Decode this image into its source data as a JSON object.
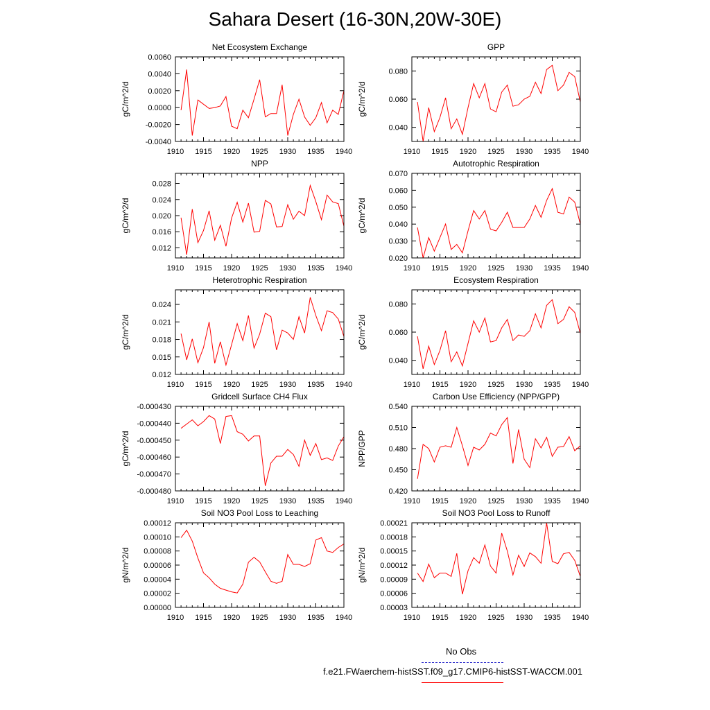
{
  "title": "Sahara Desert (16-30N,20W-30E)",
  "legend": {
    "items": [
      {
        "label": "No Obs",
        "color": "#3a3acf",
        "style": "dashed"
      },
      {
        "label": "f.e21.FWaerchem-histSST.f09_g17.CMIP6-histSST-WACCM.001",
        "color": "#ff0000",
        "style": "solid"
      }
    ]
  },
  "colors": {
    "series": "#ff0000",
    "axis": "#000000"
  },
  "chart_data": [
    {
      "type": "line",
      "title": "Net Ecosystem Exchange",
      "ylabel": "gC/m^2/d",
      "xlim": [
        1910,
        1940
      ],
      "ylim": [
        -0.004,
        0.006
      ],
      "xticks": [
        "1910",
        "1915",
        "1920",
        "1925",
        "1930",
        "1935",
        "1940"
      ],
      "yticks": [
        "-0.0040",
        "-0.0020",
        "0.0000",
        "0.0020",
        "0.0040",
        "0.0060"
      ],
      "ytick_values": [
        -0.004,
        -0.002,
        0,
        0.002,
        0.004,
        0.006
      ],
      "series": [
        {
          "x": [
            1911,
            1912,
            1913,
            1914,
            1915,
            1916,
            1917,
            1918,
            1919,
            1920,
            1921,
            1922,
            1923,
            1924,
            1925,
            1926,
            1927,
            1928,
            1929,
            1930,
            1931,
            1932,
            1933,
            1934,
            1935,
            1936,
            1937,
            1938,
            1939,
            1940
          ],
          "values": [
            -0.0003,
            0.0045,
            -0.0033,
            0.0009,
            0.0004,
            -0.0001,
            0.0,
            0.0002,
            0.0013,
            -0.0022,
            -0.0025,
            -0.0003,
            -0.0012,
            0.001,
            0.0033,
            -0.0011,
            -0.0007,
            -0.0007,
            0.0027,
            -0.0033,
            -0.0008,
            0.001,
            -0.0011,
            -0.0021,
            -0.0012,
            0.0006,
            -0.0018,
            -0.0003,
            -0.0008,
            0.002
          ]
        }
      ]
    },
    {
      "type": "line",
      "title": "GPP",
      "ylabel": "gC/m^2/d",
      "xlim": [
        1910,
        1940
      ],
      "ylim": [
        0.03,
        0.09
      ],
      "xticks": [
        "1910",
        "1915",
        "1920",
        "1925",
        "1930",
        "1935",
        "1940"
      ],
      "yticks": [
        "0.040",
        "0.060",
        "0.080"
      ],
      "ytick_values": [
        0.04,
        0.06,
        0.08
      ],
      "series": [
        {
          "x": [
            1911,
            1912,
            1913,
            1914,
            1915,
            1916,
            1917,
            1918,
            1919,
            1920,
            1921,
            1922,
            1923,
            1924,
            1925,
            1926,
            1927,
            1928,
            1929,
            1930,
            1931,
            1932,
            1933,
            1934,
            1935,
            1936,
            1937,
            1938,
            1939,
            1940
          ],
          "values": [
            0.058,
            0.03,
            0.054,
            0.037,
            0.047,
            0.061,
            0.039,
            0.046,
            0.035,
            0.054,
            0.071,
            0.061,
            0.071,
            0.053,
            0.051,
            0.065,
            0.07,
            0.055,
            0.056,
            0.06,
            0.062,
            0.072,
            0.064,
            0.081,
            0.084,
            0.066,
            0.07,
            0.079,
            0.076,
            0.058
          ]
        }
      ]
    },
    {
      "type": "line",
      "title": "NPP",
      "ylabel": "gC/m^2/d",
      "xlim": [
        1910,
        1940
      ],
      "ylim": [
        0.0095,
        0.0305
      ],
      "xticks": [
        "1910",
        "1915",
        "1920",
        "1925",
        "1930",
        "1935",
        "1940"
      ],
      "yticks": [
        "0.012",
        "0.016",
        "0.020",
        "0.024",
        "0.028"
      ],
      "ytick_values": [
        0.012,
        0.016,
        0.02,
        0.024,
        0.028
      ],
      "series": [
        {
          "x": [
            1911,
            1912,
            1913,
            1914,
            1915,
            1916,
            1917,
            1918,
            1919,
            1920,
            1921,
            1922,
            1923,
            1924,
            1925,
            1926,
            1927,
            1928,
            1929,
            1930,
            1931,
            1932,
            1933,
            1934,
            1935,
            1936,
            1937,
            1938,
            1939,
            1940
          ],
          "values": [
            0.0195,
            0.0103,
            0.0216,
            0.0133,
            0.0163,
            0.0212,
            0.0139,
            0.0176,
            0.0124,
            0.0194,
            0.0233,
            0.0184,
            0.0231,
            0.0159,
            0.0161,
            0.0238,
            0.0229,
            0.0172,
            0.0173,
            0.0227,
            0.0191,
            0.0211,
            0.02,
            0.0275,
            0.0235,
            0.019,
            0.0251,
            0.0234,
            0.023,
            0.0174
          ]
        }
      ]
    },
    {
      "type": "line",
      "title": "Autotrophic Respiration",
      "ylabel": "gC/m^2/d",
      "xlim": [
        1910,
        1940
      ],
      "ylim": [
        0.02,
        0.07
      ],
      "xticks": [
        "1910",
        "1915",
        "1920",
        "1925",
        "1930",
        "1935",
        "1940"
      ],
      "yticks": [
        "0.020",
        "0.030",
        "0.040",
        "0.050",
        "0.060",
        "0.070"
      ],
      "ytick_values": [
        0.02,
        0.03,
        0.04,
        0.05,
        0.06,
        0.07
      ],
      "series": [
        {
          "x": [
            1911,
            1912,
            1913,
            1914,
            1915,
            1916,
            1917,
            1918,
            1919,
            1920,
            1921,
            1922,
            1923,
            1924,
            1925,
            1926,
            1927,
            1928,
            1929,
            1930,
            1931,
            1932,
            1933,
            1934,
            1935,
            1936,
            1937,
            1938,
            1939,
            1940
          ],
          "values": [
            0.038,
            0.02,
            0.032,
            0.024,
            0.032,
            0.04,
            0.025,
            0.028,
            0.023,
            0.036,
            0.048,
            0.043,
            0.048,
            0.037,
            0.036,
            0.041,
            0.047,
            0.038,
            0.038,
            0.038,
            0.043,
            0.051,
            0.044,
            0.054,
            0.061,
            0.047,
            0.046,
            0.056,
            0.053,
            0.04
          ]
        }
      ]
    },
    {
      "type": "line",
      "title": "Heterotrophic Respiration",
      "ylabel": "gC/m^2/d",
      "xlim": [
        1910,
        1940
      ],
      "ylim": [
        0.012,
        0.0265
      ],
      "xticks": [
        "1910",
        "1915",
        "1920",
        "1925",
        "1930",
        "1935",
        "1940"
      ],
      "yticks": [
        "0.012",
        "0.015",
        "0.018",
        "0.021",
        "0.024"
      ],
      "ytick_values": [
        0.012,
        0.015,
        0.018,
        0.021,
        0.024
      ],
      "series": [
        {
          "x": [
            1911,
            1912,
            1913,
            1914,
            1915,
            1916,
            1917,
            1918,
            1919,
            1920,
            1921,
            1922,
            1923,
            1924,
            1925,
            1926,
            1927,
            1928,
            1929,
            1930,
            1931,
            1932,
            1933,
            1934,
            1935,
            1936,
            1937,
            1938,
            1939,
            1940
          ],
          "values": [
            0.019,
            0.0145,
            0.0181,
            0.014,
            0.0166,
            0.021,
            0.0139,
            0.0176,
            0.0136,
            0.0171,
            0.0207,
            0.0178,
            0.0221,
            0.0165,
            0.0189,
            0.0225,
            0.0219,
            0.0162,
            0.0196,
            0.0191,
            0.018,
            0.0219,
            0.0191,
            0.0252,
            0.0221,
            0.0195,
            0.0229,
            0.0226,
            0.0215,
            0.0185
          ]
        }
      ]
    },
    {
      "type": "line",
      "title": "Ecosystem Respiration",
      "ylabel": "gC/m^2/d",
      "xlim": [
        1910,
        1940
      ],
      "ylim": [
        0.03,
        0.09
      ],
      "xticks": [
        "1910",
        "1915",
        "1920",
        "1925",
        "1930",
        "1935",
        "1940"
      ],
      "yticks": [
        "0.040",
        "0.060",
        "0.080"
      ],
      "ytick_values": [
        0.04,
        0.06,
        0.08
      ],
      "series": [
        {
          "x": [
            1911,
            1912,
            1913,
            1914,
            1915,
            1916,
            1917,
            1918,
            1919,
            1920,
            1921,
            1922,
            1923,
            1924,
            1925,
            1926,
            1927,
            1928,
            1929,
            1930,
            1931,
            1932,
            1933,
            1934,
            1935,
            1936,
            1937,
            1938,
            1939,
            1940
          ],
          "values": [
            0.057,
            0.034,
            0.05,
            0.037,
            0.047,
            0.061,
            0.039,
            0.046,
            0.036,
            0.052,
            0.068,
            0.06,
            0.07,
            0.053,
            0.054,
            0.063,
            0.069,
            0.054,
            0.058,
            0.057,
            0.061,
            0.073,
            0.063,
            0.079,
            0.083,
            0.066,
            0.069,
            0.078,
            0.074,
            0.059
          ]
        }
      ]
    },
    {
      "type": "line",
      "title": "Gridcell Surface CH4 Flux",
      "ylabel": "gC/m^2/d",
      "xlim": [
        1910,
        1940
      ],
      "ylim": [
        -0.00048,
        -0.00043
      ],
      "xticks": [
        "1910",
        "1915",
        "1920",
        "1925",
        "1930",
        "1935",
        "1940"
      ],
      "yticks": [
        "-0.000480",
        "-0.000470",
        "-0.000460",
        "-0.000450",
        "-0.000440",
        "-0.000430"
      ],
      "ytick_values": [
        -0.00048,
        -0.00047,
        -0.00046,
        -0.00045,
        -0.00044,
        -0.00043
      ],
      "series": [
        {
          "x": [
            1911,
            1912,
            1913,
            1914,
            1915,
            1916,
            1917,
            1918,
            1919,
            1920,
            1921,
            1922,
            1923,
            1924,
            1925,
            1926,
            1927,
            1928,
            1929,
            1930,
            1931,
            1932,
            1933,
            1934,
            1935,
            1936,
            1937,
            1938,
            1939,
            1940
          ],
          "values": [
            -0.000443,
            -0.0004405,
            -0.000438,
            -0.0004415,
            -0.000439,
            -0.0004355,
            -0.0004375,
            -0.000452,
            -0.000436,
            -0.0004355,
            -0.000445,
            -0.0004465,
            -0.0004505,
            -0.0004475,
            -0.0004475,
            -0.000477,
            -0.0004635,
            -0.0004595,
            -0.0004595,
            -0.0004555,
            -0.0004585,
            -0.0004655,
            -0.00045,
            -0.000459,
            -0.000452,
            -0.0004615,
            -0.0004605,
            -0.000462,
            -0.0004535,
            -0.000448
          ]
        }
      ]
    },
    {
      "type": "line",
      "title": "Carbon Use Efficiency (NPP/GPP)",
      "ylabel": "NPP/GPP",
      "xlim": [
        1910,
        1940
      ],
      "ylim": [
        0.42,
        0.54
      ],
      "xticks": [
        "1910",
        "1915",
        "1920",
        "1925",
        "1930",
        "1935",
        "1940"
      ],
      "yticks": [
        "0.420",
        "0.450",
        "0.480",
        "0.510",
        "0.540"
      ],
      "ytick_values": [
        0.42,
        0.45,
        0.48,
        0.51,
        0.54
      ],
      "series": [
        {
          "x": [
            1911,
            1912,
            1913,
            1914,
            1915,
            1916,
            1917,
            1918,
            1919,
            1920,
            1921,
            1922,
            1923,
            1924,
            1925,
            1926,
            1927,
            1928,
            1929,
            1930,
            1931,
            1932,
            1933,
            1934,
            1935,
            1936,
            1937,
            1938,
            1939,
            1940
          ],
          "values": [
            0.437,
            0.486,
            0.48,
            0.461,
            0.482,
            0.484,
            0.482,
            0.51,
            0.484,
            0.456,
            0.482,
            0.478,
            0.486,
            0.502,
            0.498,
            0.514,
            0.524,
            0.459,
            0.507,
            0.465,
            0.453,
            0.494,
            0.481,
            0.496,
            0.469,
            0.482,
            0.483,
            0.497,
            0.477,
            0.484
          ]
        }
      ]
    },
    {
      "type": "line",
      "title": "Soil NO3 Pool Loss to Leaching",
      "ylabel": "gN/m^2/d",
      "xlim": [
        1910,
        1940
      ],
      "ylim": [
        0,
        0.00012
      ],
      "xticks": [
        "1910",
        "1915",
        "1920",
        "1925",
        "1930",
        "1935",
        "1940"
      ],
      "yticks": [
        "0.00000",
        "0.00002",
        "0.00004",
        "0.00006",
        "0.00008",
        "0.00010",
        "0.00012"
      ],
      "ytick_values": [
        0,
        2e-05,
        4e-05,
        6e-05,
        8e-05,
        0.0001,
        0.00012
      ],
      "series": [
        {
          "x": [
            1911,
            1912,
            1913,
            1914,
            1915,
            1916,
            1917,
            1918,
            1919,
            1920,
            1921,
            1922,
            1923,
            1924,
            1925,
            1926,
            1927,
            1928,
            1929,
            1930,
            1931,
            1932,
            1933,
            1934,
            1935,
            1936,
            1937,
            1938,
            1939,
            1940
          ],
          "values": [
            9.9e-05,
            0.0001095,
            9.4e-05,
            7e-05,
            4.9e-05,
            4.2e-05,
            3.3e-05,
            2.7e-05,
            2.45e-05,
            2.2e-05,
            2.05e-05,
            3.3e-05,
            6.4e-05,
            7.1e-05,
            6.45e-05,
            5.05e-05,
            3.7e-05,
            3.4e-05,
            3.7e-05,
            7.5e-05,
            6.1e-05,
            6.1e-05,
            5.8e-05,
            6.2e-05,
            9.55e-05,
            9.9e-05,
            8e-05,
            7.8e-05,
            8.5e-05,
            9e-05
          ]
        }
      ]
    },
    {
      "type": "line",
      "title": "Soil NO3 Pool Loss to Runoff",
      "ylabel": "gN/m^2/d",
      "xlim": [
        1910,
        1940
      ],
      "ylim": [
        3e-05,
        0.00021
      ],
      "xticks": [
        "1910",
        "1915",
        "1920",
        "1925",
        "1930",
        "1935",
        "1940"
      ],
      "yticks": [
        "0.00003",
        "0.00006",
        "0.00009",
        "0.00012",
        "0.00015",
        "0.00018",
        "0.00021"
      ],
      "ytick_values": [
        3e-05,
        6e-05,
        9e-05,
        0.00012,
        0.00015,
        0.00018,
        0.00021
      ],
      "series": [
        {
          "x": [
            1911,
            1912,
            1913,
            1914,
            1915,
            1916,
            1917,
            1918,
            1919,
            1920,
            1921,
            1922,
            1923,
            1924,
            1925,
            1926,
            1927,
            1928,
            1929,
            1930,
            1931,
            1932,
            1933,
            1934,
            1935,
            1936,
            1937,
            1938,
            1939,
            1940
          ],
          "values": [
            0.000103,
            8.5e-05,
            0.000122,
            9.3e-05,
            0.000103,
            0.000103,
            9.6e-05,
            0.000145,
            5.8e-05,
            0.000108,
            0.000136,
            0.000124,
            0.000163,
            0.000118,
            0.000103,
            0.000188,
            0.00015,
            9.9e-05,
            0.000141,
            0.000117,
            0.000146,
            0.000138,
            0.000124,
            0.00021,
            0.000128,
            0.000123,
            0.000144,
            0.000147,
            0.00013,
            9.6e-05
          ]
        }
      ]
    }
  ]
}
